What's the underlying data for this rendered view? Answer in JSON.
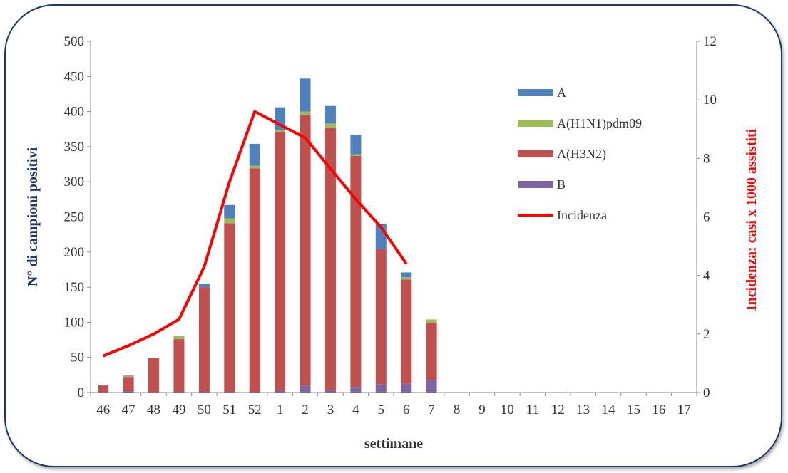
{
  "chart_data": {
    "type": "bar",
    "stacked": true,
    "xlabel": "settimane",
    "ylabel": "N° di campioni positivi",
    "y2label": "Incidenza: casi x 1000 assistiti",
    "ylim": [
      0,
      500
    ],
    "y2lim": [
      0,
      12
    ],
    "yticks": [
      "0",
      "50",
      "100",
      "150",
      "200",
      "250",
      "300",
      "350",
      "400",
      "450",
      "500"
    ],
    "y2ticks": [
      "0",
      "2",
      "4",
      "6",
      "8",
      "10",
      "12"
    ],
    "categories": [
      "46",
      "47",
      "48",
      "49",
      "50",
      "51",
      "52",
      "1",
      "2",
      "3",
      "4",
      "5",
      "6",
      "7",
      "8",
      "9",
      "10",
      "11",
      "12",
      "13",
      "14",
      "15",
      "16",
      "17"
    ],
    "series": [
      {
        "name": "B",
        "color": "#8064a2",
        "values": [
          1,
          2,
          1,
          1,
          1,
          1,
          1,
          3,
          10,
          3,
          8,
          12,
          13,
          18,
          0,
          0,
          0,
          0,
          0,
          0,
          0,
          0,
          0,
          0
        ]
      },
      {
        "name": "A(H3N2)",
        "color": "#c0504d",
        "values": [
          9,
          20,
          48,
          75,
          149,
          240,
          318,
          368,
          385,
          374,
          329,
          192,
          148,
          81,
          0,
          0,
          0,
          0,
          0,
          0,
          0,
          0,
          0,
          0
        ]
      },
      {
        "name": "A(H1N1)pdm09",
        "color": "#9bbb59",
        "values": [
          0,
          1,
          0,
          4,
          0,
          7,
          4,
          3,
          5,
          6,
          2,
          0,
          3,
          5,
          0,
          0,
          0,
          0,
          0,
          0,
          0,
          0,
          0,
          0
        ]
      },
      {
        "name": "A",
        "color": "#4f81bd",
        "values": [
          1,
          1,
          0,
          1,
          5,
          19,
          31,
          32,
          47,
          25,
          28,
          36,
          7,
          0,
          0,
          0,
          0,
          0,
          0,
          0,
          0,
          0,
          0,
          0
        ]
      }
    ],
    "line": {
      "name": "Incidenza",
      "color": "#ff0000",
      "axis": "right",
      "values": [
        1.25,
        1.6,
        2.0,
        2.5,
        4.3,
        7.2,
        9.6,
        9.15,
        8.7,
        7.65,
        6.6,
        5.65,
        4.4,
        null,
        null,
        null,
        null,
        null,
        null,
        null,
        null,
        null,
        null,
        null
      ]
    },
    "legend": {
      "position": "right-inside",
      "order": [
        "A",
        "A(H1N1)pdm09",
        "A(H3N2)",
        "B",
        "Incidenza"
      ]
    }
  }
}
